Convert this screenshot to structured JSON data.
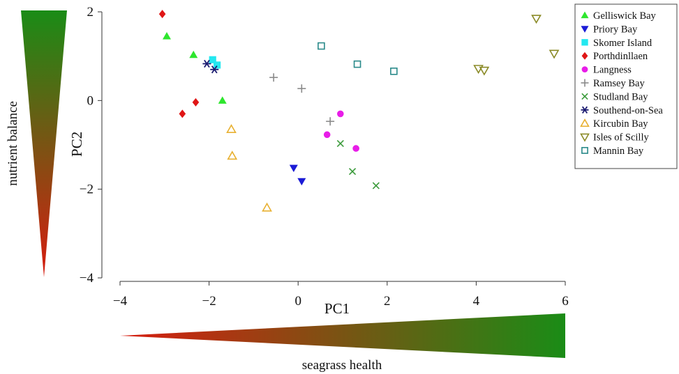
{
  "chart_data": {
    "type": "scatter",
    "xlabel": "PC1",
    "ylabel": "PC2",
    "xlim": [
      -4,
      6
    ],
    "ylim": [
      -4,
      2
    ],
    "xticks": [
      -4,
      -2,
      0,
      2,
      4,
      6
    ],
    "yticks": [
      2,
      0,
      -2,
      -4
    ],
    "xtick_labels": [
      "−4",
      "−2",
      "0",
      "2",
      "4",
      "6"
    ],
    "ytick_labels": [
      "2",
      "0",
      "−2",
      "−4"
    ],
    "grid": false,
    "legend_position": "top-right",
    "series": [
      {
        "name": "Gelliswick Bay",
        "marker": "triangle-up",
        "color": "#2ee62e",
        "points": [
          [
            -2.95,
            1.45
          ],
          [
            -2.35,
            1.03
          ],
          [
            -1.7,
            0.0
          ]
        ]
      },
      {
        "name": "Priory Bay",
        "marker": "triangle-down",
        "color": "#1b1bd6",
        "points": [
          [
            -0.1,
            -1.52
          ],
          [
            0.08,
            -1.82
          ]
        ]
      },
      {
        "name": "Skomer Island",
        "marker": "square",
        "color": "#24e8f0",
        "points": [
          [
            -1.92,
            0.92
          ],
          [
            -1.82,
            0.8
          ]
        ]
      },
      {
        "name": "Porthdinllaen",
        "marker": "diamond",
        "color": "#e01616",
        "points": [
          [
            -3.05,
            1.95
          ],
          [
            -2.6,
            -0.3
          ],
          [
            -2.3,
            -0.04
          ]
        ]
      },
      {
        "name": "Langness",
        "marker": "circle",
        "color": "#e81de8",
        "points": [
          [
            0.65,
            -0.77
          ],
          [
            0.95,
            -0.3
          ],
          [
            1.3,
            -1.08
          ]
        ]
      },
      {
        "name": "Ramsey Bay",
        "marker": "plus",
        "color": "#8a8a8a",
        "points": [
          [
            -0.55,
            0.52
          ],
          [
            0.08,
            0.27
          ],
          [
            0.72,
            -0.47
          ]
        ]
      },
      {
        "name": "Studland Bay",
        "marker": "x",
        "color": "#3a9a3a",
        "points": [
          [
            0.95,
            -0.97
          ],
          [
            1.22,
            -1.6
          ],
          [
            1.75,
            -1.92
          ]
        ]
      },
      {
        "name": "Southend-on-Sea",
        "marker": "asterisk",
        "color": "#1a1a70",
        "points": [
          [
            -2.05,
            0.83
          ],
          [
            -1.88,
            0.7
          ]
        ]
      },
      {
        "name": "Kircubin Bay",
        "marker": "triangle-up-open",
        "color": "#e8b030",
        "points": [
          [
            -1.5,
            -0.65
          ],
          [
            -1.48,
            -1.25
          ],
          [
            -0.7,
            -2.42
          ]
        ]
      },
      {
        "name": "Isles of Scilly",
        "marker": "triangle-down-open",
        "color": "#8a8a26",
        "points": [
          [
            4.05,
            0.72
          ],
          [
            4.18,
            0.68
          ],
          [
            5.35,
            1.85
          ],
          [
            5.75,
            1.06
          ]
        ]
      },
      {
        "name": "Mannin Bay",
        "marker": "square-open",
        "color": "#2a8a8a",
        "points": [
          [
            0.52,
            1.23
          ],
          [
            1.33,
            0.82
          ],
          [
            2.15,
            0.66
          ]
        ]
      }
    ]
  },
  "side_gradient": {
    "label": "nutrient balance",
    "color_top": "#1a8c16",
    "color_bottom": "#d81c10"
  },
  "bottom_gradient": {
    "label": "seagrass health",
    "color_left": "#d81c10",
    "color_right": "#1a8c16"
  }
}
